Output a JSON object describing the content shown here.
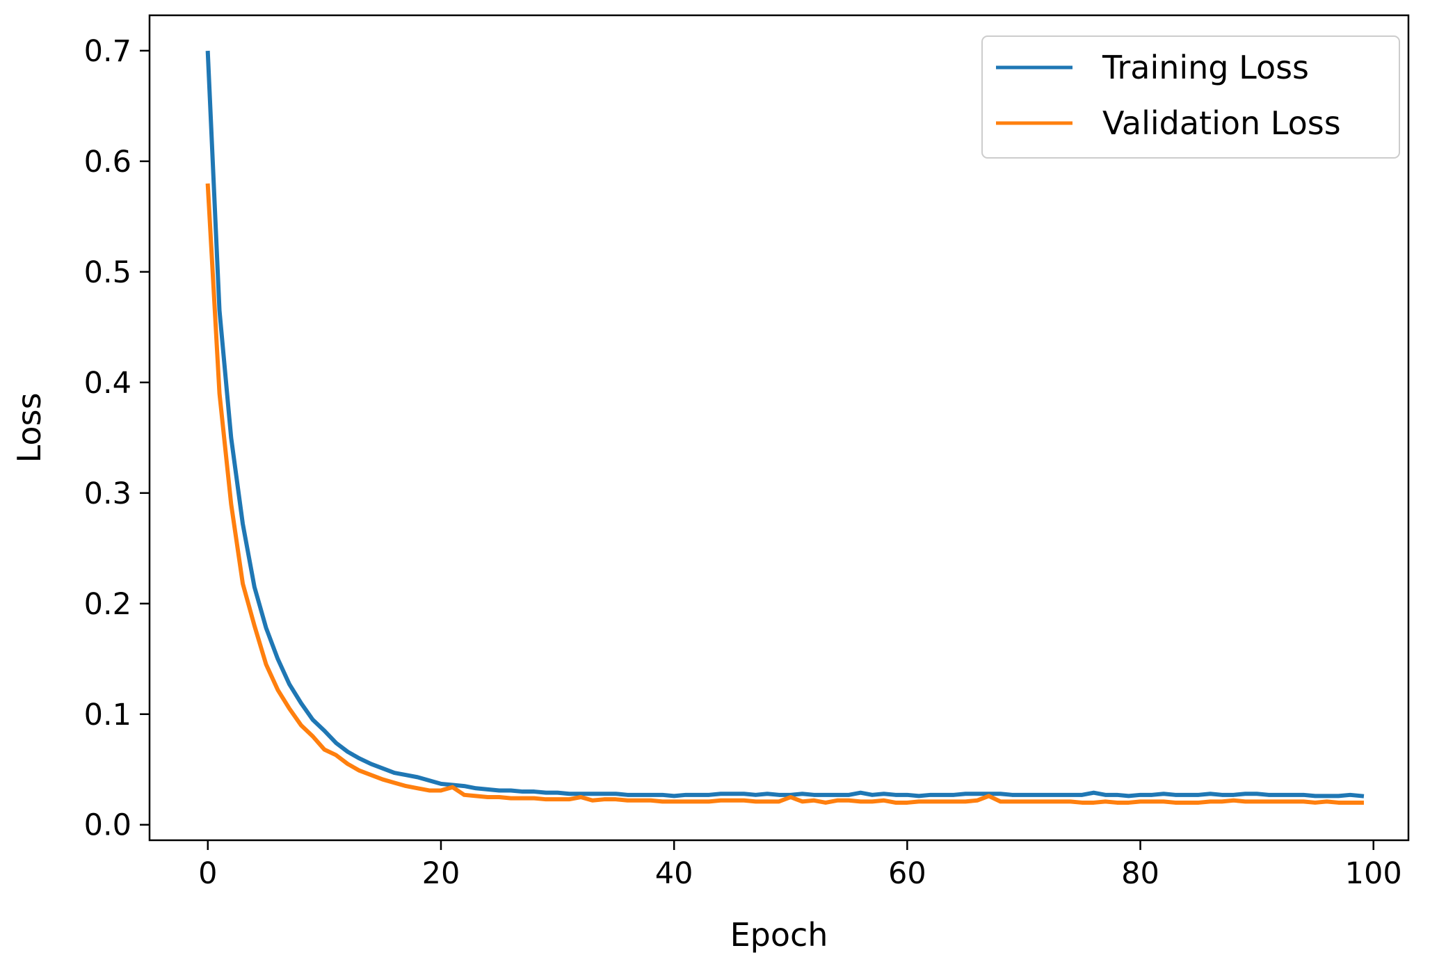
{
  "chart_data": {
    "type": "line",
    "title": "",
    "xlabel": "Epoch",
    "ylabel": "Loss",
    "xlim": [
      -5,
      103
    ],
    "ylim": [
      -0.014,
      0.732
    ],
    "x_ticks": [
      0,
      20,
      40,
      60,
      80,
      100
    ],
    "y_ticks": [
      0.0,
      0.1,
      0.2,
      0.3,
      0.4,
      0.5,
      0.6,
      0.7
    ],
    "x_tick_labels": [
      "0",
      "20",
      "40",
      "60",
      "80",
      "100"
    ],
    "y_tick_labels": [
      "0.0",
      "0.1",
      "0.2",
      "0.3",
      "0.4",
      "0.5",
      "0.6",
      "0.7"
    ],
    "grid": false,
    "legend_position": "upper right",
    "x": [
      0,
      1,
      2,
      3,
      4,
      5,
      6,
      7,
      8,
      9,
      10,
      11,
      12,
      13,
      14,
      15,
      16,
      17,
      18,
      19,
      20,
      21,
      22,
      23,
      24,
      25,
      26,
      27,
      28,
      29,
      30,
      31,
      32,
      33,
      34,
      35,
      36,
      37,
      38,
      39,
      40,
      41,
      42,
      43,
      44,
      45,
      46,
      47,
      48,
      49,
      50,
      51,
      52,
      53,
      54,
      55,
      56,
      57,
      58,
      59,
      60,
      61,
      62,
      63,
      64,
      65,
      66,
      67,
      68,
      69,
      70,
      71,
      72,
      73,
      74,
      75,
      76,
      77,
      78,
      79,
      80,
      81,
      82,
      83,
      84,
      85,
      86,
      87,
      88,
      89,
      90,
      91,
      92,
      93,
      94,
      95,
      96,
      97,
      98,
      99
    ],
    "series": [
      {
        "name": "Training Loss",
        "color": "#1f77b4",
        "values": [
          0.698,
          0.465,
          0.35,
          0.272,
          0.215,
          0.178,
          0.15,
          0.127,
          0.11,
          0.095,
          0.085,
          0.074,
          0.066,
          0.06,
          0.055,
          0.051,
          0.047,
          0.045,
          0.043,
          0.04,
          0.037,
          0.036,
          0.035,
          0.033,
          0.032,
          0.031,
          0.031,
          0.03,
          0.03,
          0.029,
          0.029,
          0.028,
          0.028,
          0.028,
          0.028,
          0.028,
          0.027,
          0.027,
          0.027,
          0.027,
          0.026,
          0.027,
          0.027,
          0.027,
          0.028,
          0.028,
          0.028,
          0.027,
          0.028,
          0.027,
          0.027,
          0.028,
          0.027,
          0.027,
          0.027,
          0.027,
          0.029,
          0.027,
          0.028,
          0.027,
          0.027,
          0.026,
          0.027,
          0.027,
          0.027,
          0.028,
          0.028,
          0.028,
          0.028,
          0.027,
          0.027,
          0.027,
          0.027,
          0.027,
          0.027,
          0.027,
          0.029,
          0.027,
          0.027,
          0.026,
          0.027,
          0.027,
          0.028,
          0.027,
          0.027,
          0.027,
          0.028,
          0.027,
          0.027,
          0.028,
          0.028,
          0.027,
          0.027,
          0.027,
          0.027,
          0.026,
          0.026,
          0.026,
          0.027,
          0.026
        ]
      },
      {
        "name": "Validation Loss",
        "color": "#ff7f0e",
        "values": [
          0.578,
          0.39,
          0.29,
          0.218,
          0.18,
          0.145,
          0.122,
          0.105,
          0.09,
          0.08,
          0.068,
          0.063,
          0.055,
          0.049,
          0.045,
          0.041,
          0.038,
          0.035,
          0.033,
          0.031,
          0.031,
          0.034,
          0.027,
          0.026,
          0.025,
          0.025,
          0.024,
          0.024,
          0.024,
          0.023,
          0.023,
          0.023,
          0.025,
          0.022,
          0.023,
          0.023,
          0.022,
          0.022,
          0.022,
          0.021,
          0.021,
          0.021,
          0.021,
          0.021,
          0.022,
          0.022,
          0.022,
          0.021,
          0.021,
          0.021,
          0.025,
          0.021,
          0.022,
          0.02,
          0.022,
          0.022,
          0.021,
          0.021,
          0.022,
          0.02,
          0.02,
          0.021,
          0.021,
          0.021,
          0.021,
          0.021,
          0.022,
          0.026,
          0.021,
          0.021,
          0.021,
          0.021,
          0.021,
          0.021,
          0.021,
          0.02,
          0.02,
          0.021,
          0.02,
          0.02,
          0.021,
          0.021,
          0.021,
          0.02,
          0.02,
          0.02,
          0.021,
          0.021,
          0.022,
          0.021,
          0.021,
          0.021,
          0.021,
          0.021,
          0.021,
          0.02,
          0.021,
          0.02,
          0.02,
          0.02
        ]
      }
    ]
  }
}
